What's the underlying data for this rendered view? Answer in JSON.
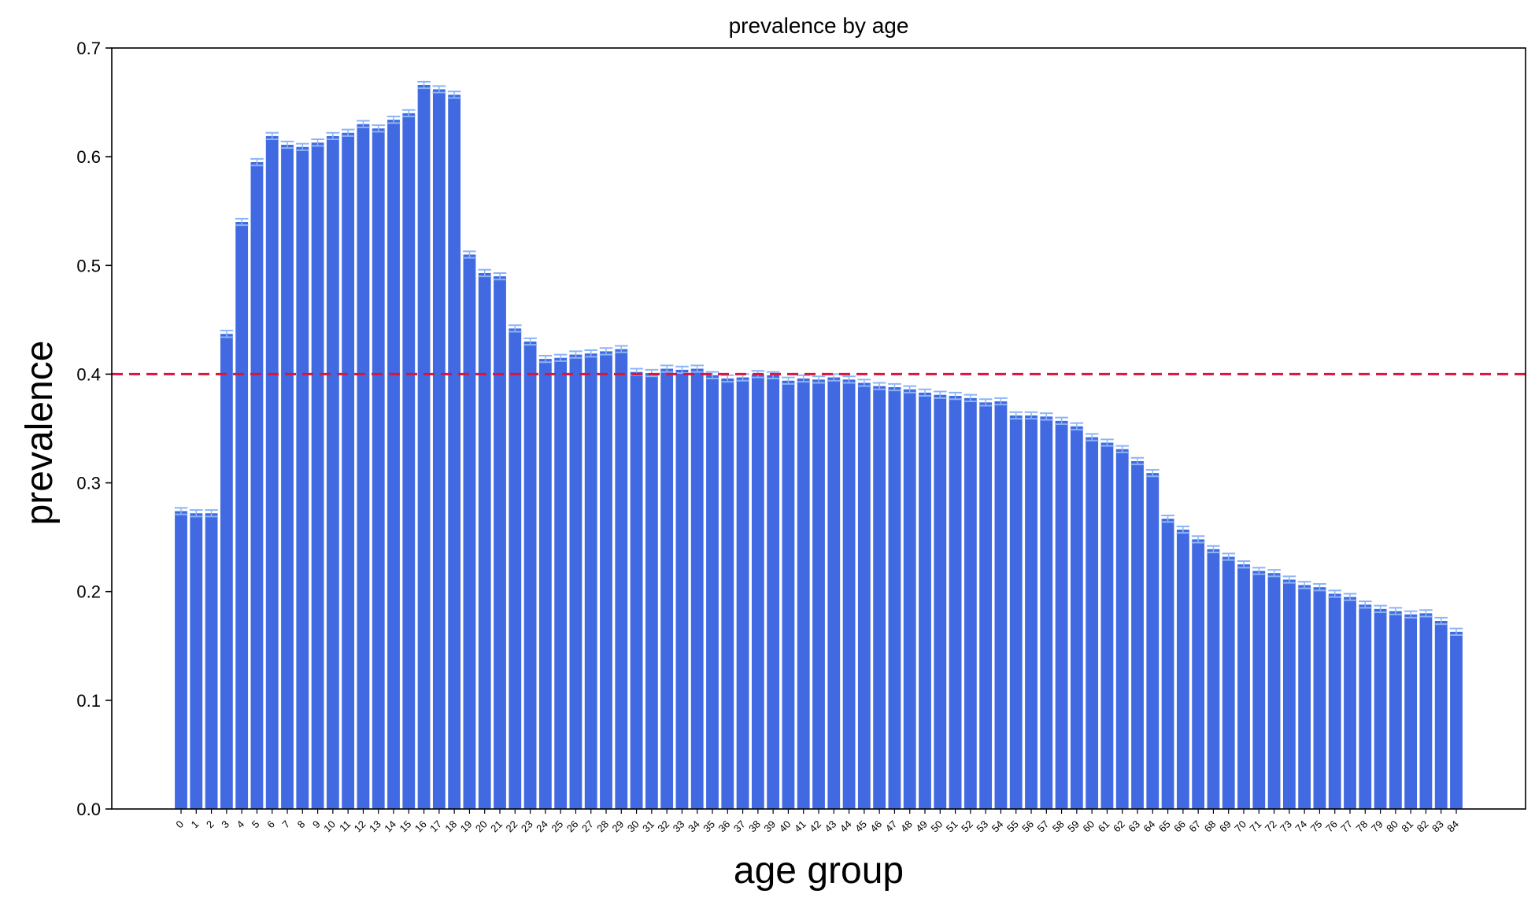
{
  "chart_data": {
    "type": "bar",
    "title": "prevalence by age",
    "xlabel": "age group",
    "ylabel": "prevalence",
    "ylim": [
      0,
      0.7
    ],
    "yticks": [
      "0.0",
      "0.1",
      "0.2",
      "0.3",
      "0.4",
      "0.5",
      "0.6",
      "0.7"
    ],
    "grid": false,
    "bar_color": "#4169e1",
    "errorbar_color": "#8ab4f8",
    "reference_line": {
      "value": 0.4,
      "color": "#dc143c",
      "style": "dashed"
    },
    "categories": [
      "0",
      "1",
      "2",
      "3",
      "4",
      "5",
      "6",
      "7",
      "8",
      "9",
      "10",
      "11",
      "12",
      "13",
      "14",
      "15",
      "16",
      "17",
      "18",
      "19",
      "20",
      "21",
      "22",
      "23",
      "24",
      "25",
      "26",
      "27",
      "28",
      "29",
      "30",
      "31",
      "32",
      "33",
      "34",
      "35",
      "36",
      "37",
      "38",
      "39",
      "40",
      "41",
      "42",
      "43",
      "44",
      "45",
      "46",
      "47",
      "48",
      "49",
      "50",
      "51",
      "52",
      "53",
      "54",
      "55",
      "56",
      "57",
      "58",
      "59",
      "60",
      "61",
      "62",
      "63",
      "64",
      "65",
      "66",
      "67",
      "68",
      "69",
      "70",
      "71",
      "72",
      "73",
      "74",
      "75",
      "76",
      "77",
      "78",
      "79",
      "80",
      "81",
      "82",
      "83",
      "84"
    ],
    "values": [
      0.274,
      0.272,
      0.272,
      0.437,
      0.54,
      0.595,
      0.619,
      0.611,
      0.609,
      0.613,
      0.619,
      0.622,
      0.63,
      0.626,
      0.634,
      0.64,
      0.666,
      0.662,
      0.657,
      0.51,
      0.493,
      0.49,
      0.442,
      0.43,
      0.414,
      0.415,
      0.418,
      0.419,
      0.421,
      0.423,
      0.402,
      0.401,
      0.405,
      0.404,
      0.405,
      0.399,
      0.396,
      0.397,
      0.4,
      0.399,
      0.394,
      0.396,
      0.395,
      0.397,
      0.395,
      0.392,
      0.389,
      0.388,
      0.386,
      0.383,
      0.381,
      0.38,
      0.378,
      0.374,
      0.375,
      0.362,
      0.362,
      0.361,
      0.357,
      0.352,
      0.342,
      0.337,
      0.331,
      0.32,
      0.309,
      0.267,
      0.257,
      0.248,
      0.239,
      0.232,
      0.225,
      0.219,
      0.217,
      0.211,
      0.206,
      0.204,
      0.198,
      0.195,
      0.188,
      0.184,
      0.182,
      0.179,
      0.18,
      0.173,
      0.163
    ],
    "error": 0.003
  }
}
